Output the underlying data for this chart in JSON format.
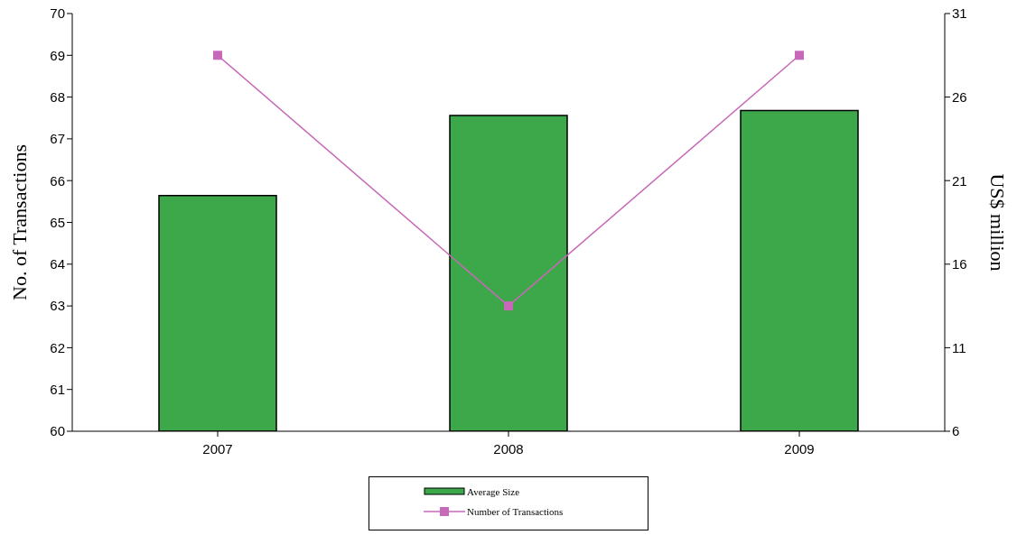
{
  "chart_data": {
    "type": "bar",
    "categories": [
      "2007",
      "2008",
      "2009"
    ],
    "series": [
      {
        "name": "Average Size",
        "axis": "y2",
        "color": "#3ca84a",
        "values": [
          20.1,
          24.9,
          25.2
        ]
      },
      {
        "name": "Number of Transactions",
        "type": "line",
        "color": "#c868b8",
        "values": [
          69,
          63,
          69
        ]
      }
    ],
    "ylabel": "No. of Transactions",
    "y2label": "US$ million",
    "ylim": [
      60,
      70
    ],
    "yticks": [
      60,
      61,
      62,
      63,
      64,
      65,
      66,
      67,
      68,
      69,
      70
    ],
    "y2lim": [
      6,
      31
    ],
    "y2ticks": [
      6,
      11,
      16,
      21,
      26,
      31
    ],
    "marker": "square",
    "legend": "bottom",
    "grid": false
  }
}
